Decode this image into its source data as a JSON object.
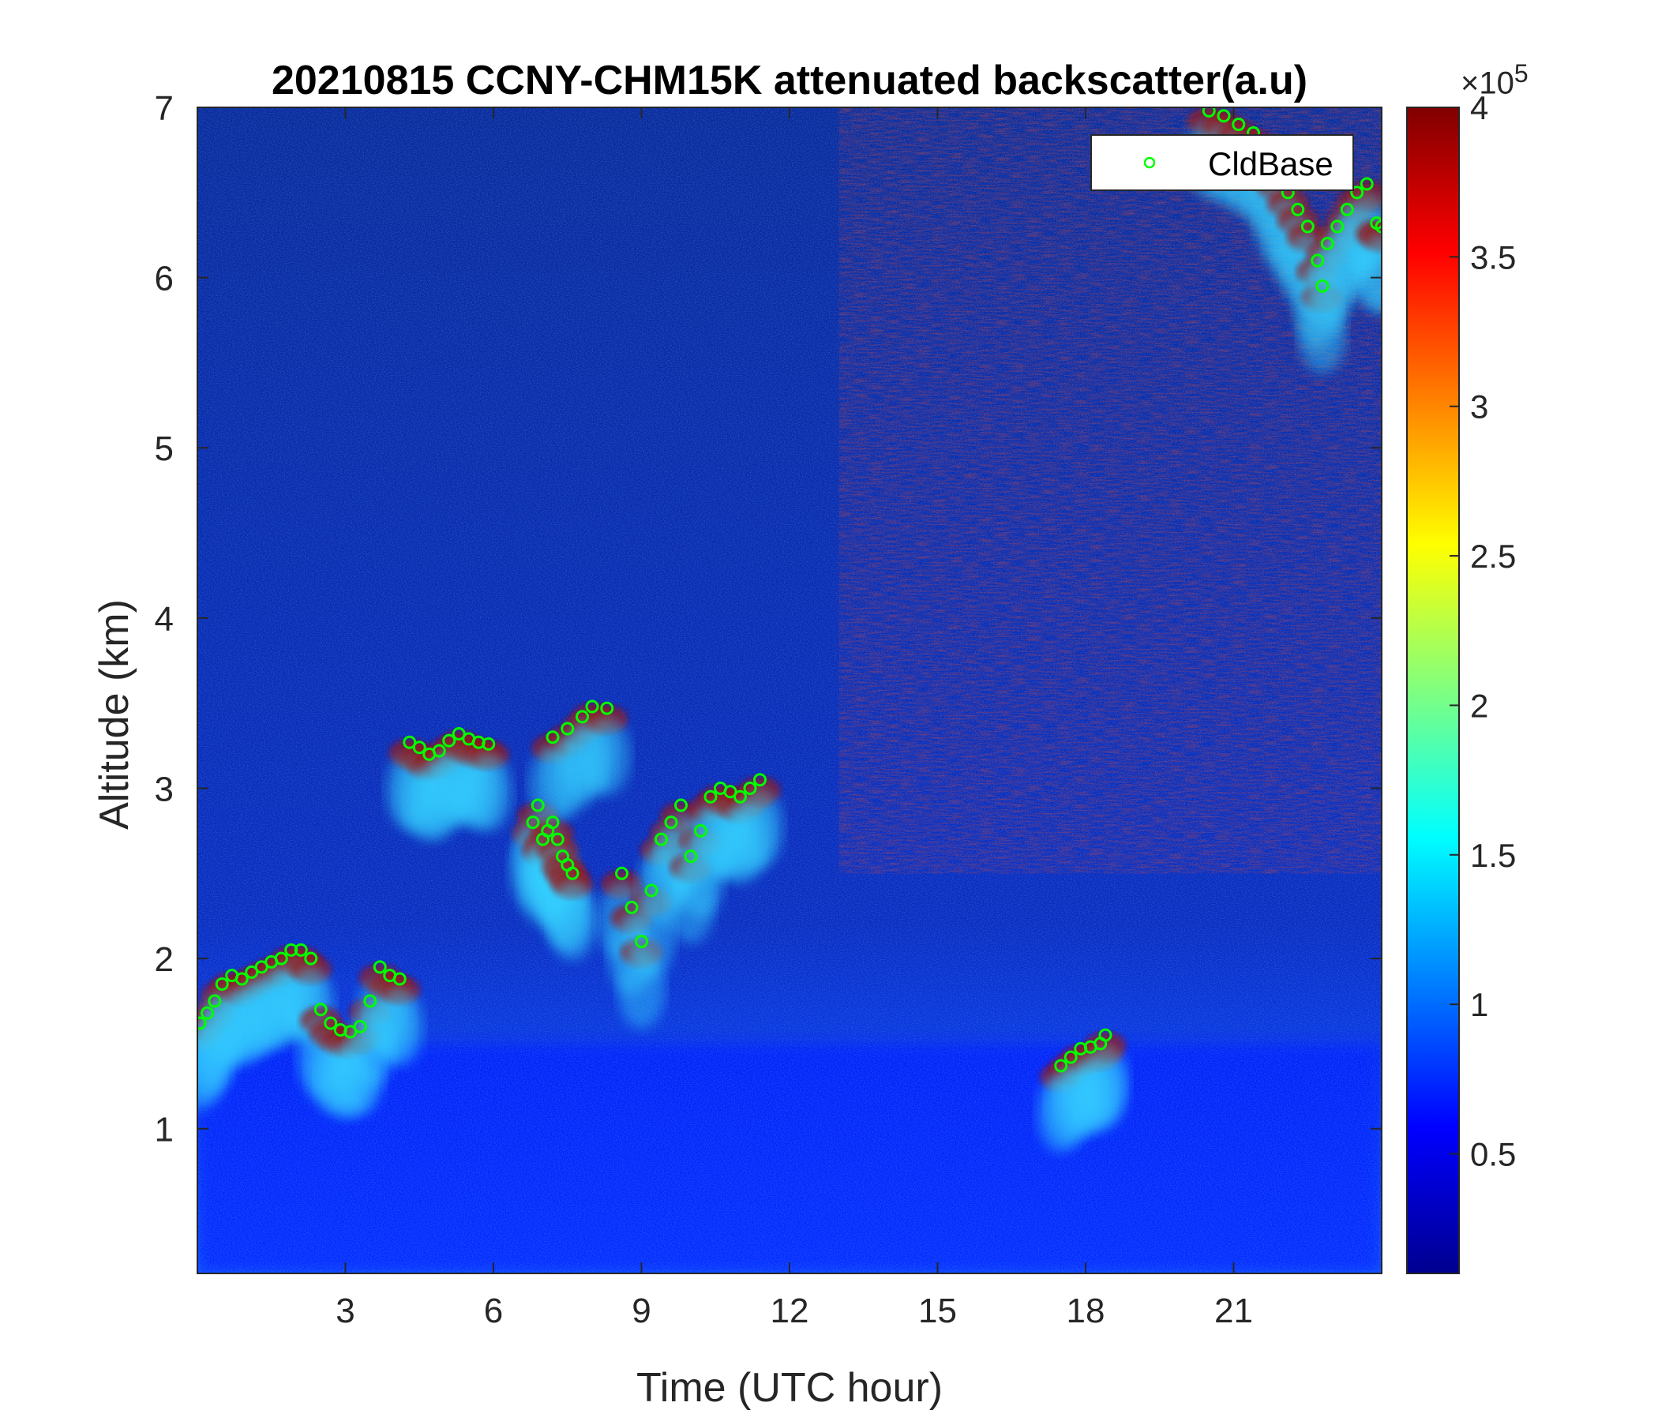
{
  "chart_data": {
    "type": "heatmap",
    "title": "20210815 CCNY-CHM15K attenuated backscatter(a.u)",
    "xlabel": "Time (UTC hour)",
    "ylabel": "Altitude (km)",
    "xlim": [
      0,
      24
    ],
    "ylim": [
      0.15,
      7
    ],
    "xticks": [
      3,
      6,
      9,
      12,
      15,
      18,
      21
    ],
    "yticks": [
      1,
      2,
      3,
      4,
      5,
      6,
      7
    ],
    "colorbar": {
      "colormap": "jet",
      "clim": [
        0.1,
        4
      ],
      "ticks": [
        0.5,
        1,
        1.5,
        2,
        2.5,
        3,
        3.5,
        4
      ],
      "tick_labels": [
        "0.5",
        "1",
        "1.5",
        "2",
        "2.5",
        "3",
        "3.5",
        "4"
      ],
      "multiplier_base": "×10",
      "multiplier_exponent": "5"
    },
    "legend": {
      "placement": "top-right",
      "entries": [
        {
          "label": "CldBase",
          "marker": "circle",
          "color": "#00ff00"
        }
      ]
    },
    "series": [
      {
        "name": "CldBase",
        "points": [
          [
            0.05,
            1.62
          ],
          [
            0.2,
            1.68
          ],
          [
            0.35,
            1.75
          ],
          [
            0.5,
            1.85
          ],
          [
            0.7,
            1.9
          ],
          [
            0.9,
            1.88
          ],
          [
            1.1,
            1.92
          ],
          [
            1.3,
            1.95
          ],
          [
            1.5,
            1.98
          ],
          [
            1.7,
            2.0
          ],
          [
            1.9,
            2.05
          ],
          [
            2.1,
            2.05
          ],
          [
            2.3,
            2.0
          ],
          [
            2.5,
            1.7
          ],
          [
            2.7,
            1.62
          ],
          [
            2.9,
            1.58
          ],
          [
            3.1,
            1.57
          ],
          [
            3.3,
            1.6
          ],
          [
            3.5,
            1.75
          ],
          [
            3.7,
            1.95
          ],
          [
            3.9,
            1.9
          ],
          [
            4.1,
            1.88
          ],
          [
            4.3,
            3.27
          ],
          [
            4.5,
            3.24
          ],
          [
            4.7,
            3.2
          ],
          [
            4.9,
            3.22
          ],
          [
            5.1,
            3.28
          ],
          [
            5.3,
            3.32
          ],
          [
            5.5,
            3.29
          ],
          [
            5.7,
            3.27
          ],
          [
            5.9,
            3.26
          ],
          [
            6.8,
            2.8
          ],
          [
            6.9,
            2.9
          ],
          [
            7.0,
            2.7
          ],
          [
            7.1,
            2.75
          ],
          [
            7.2,
            2.8
          ],
          [
            7.3,
            2.7
          ],
          [
            7.4,
            2.6
          ],
          [
            7.5,
            2.55
          ],
          [
            7.6,
            2.5
          ],
          [
            7.2,
            3.3
          ],
          [
            7.5,
            3.35
          ],
          [
            7.8,
            3.42
          ],
          [
            8.0,
            3.48
          ],
          [
            8.3,
            3.47
          ],
          [
            8.6,
            2.5
          ],
          [
            8.8,
            2.3
          ],
          [
            9.0,
            2.1
          ],
          [
            9.2,
            2.4
          ],
          [
            9.4,
            2.7
          ],
          [
            9.6,
            2.8
          ],
          [
            9.8,
            2.9
          ],
          [
            10.0,
            2.6
          ],
          [
            10.2,
            2.75
          ],
          [
            10.4,
            2.95
          ],
          [
            10.6,
            3.0
          ],
          [
            10.8,
            2.98
          ],
          [
            11.0,
            2.95
          ],
          [
            11.2,
            3.0
          ],
          [
            11.4,
            3.05
          ],
          [
            17.5,
            1.37
          ],
          [
            17.7,
            1.42
          ],
          [
            17.9,
            1.47
          ],
          [
            18.1,
            1.48
          ],
          [
            18.3,
            1.5
          ],
          [
            18.4,
            1.55
          ],
          [
            20.5,
            6.98
          ],
          [
            20.8,
            6.95
          ],
          [
            21.1,
            6.9
          ],
          [
            21.4,
            6.85
          ],
          [
            21.7,
            6.75
          ],
          [
            21.9,
            6.6
          ],
          [
            22.1,
            6.5
          ],
          [
            22.3,
            6.4
          ],
          [
            22.5,
            6.3
          ],
          [
            22.7,
            6.1
          ],
          [
            22.8,
            5.95
          ],
          [
            22.9,
            6.2
          ],
          [
            23.1,
            6.3
          ],
          [
            23.3,
            6.4
          ],
          [
            23.5,
            6.5
          ],
          [
            23.7,
            6.55
          ],
          [
            23.9,
            6.32
          ],
          [
            24.0,
            6.3
          ]
        ]
      }
    ],
    "background_layers": [
      {
        "description": "near-surface boundary layer",
        "xrange": [
          0,
          24
        ],
        "yrange": [
          0.15,
          1.5
        ],
        "value": 0.7
      },
      {
        "description": "high-altitude noise",
        "xrange": [
          13,
          24
        ],
        "yrange": [
          2.5,
          7
        ],
        "value": 4.0
      }
    ]
  }
}
